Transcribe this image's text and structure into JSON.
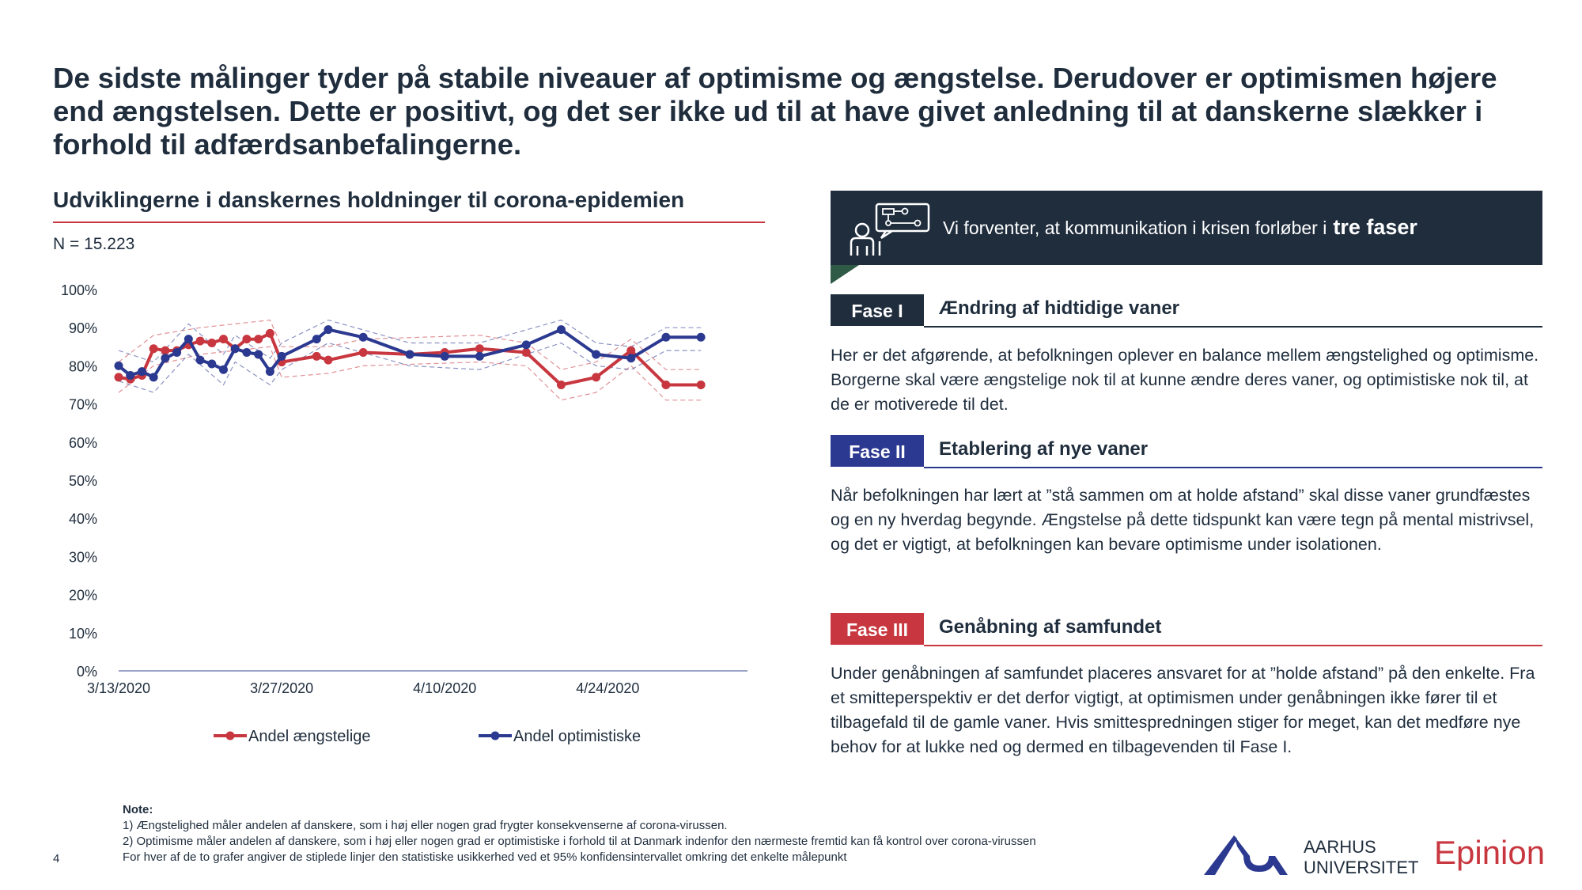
{
  "headline": "De sidste målinger tyder på stabile niveauer af optimisme og ængstelse. Derudover er optimismen højere end ængstelsen. Dette er positivt, og det ser ikke ud til at have givet anledning til at danskerne slækker i forhold til adfærdsanbefalingerne.",
  "chart_title": "Udviklingerne i danskernes holdninger til corona-epidemien",
  "n_label": "N = 15.223",
  "chart_data": {
    "type": "line",
    "ylim": [
      0,
      100
    ],
    "y_ticks": [
      "0%",
      "10%",
      "20%",
      "30%",
      "40%",
      "50%",
      "60%",
      "70%",
      "80%",
      "90%",
      "100%"
    ],
    "x_range": [
      "2020-03-13",
      "2020-05-06"
    ],
    "x_ticks": [
      {
        "date": "2020-03-13",
        "label": "3/13/2020"
      },
      {
        "date": "2020-03-27",
        "label": "3/27/2020"
      },
      {
        "date": "2020-04-10",
        "label": "4/10/2020"
      },
      {
        "date": "2020-04-24",
        "label": "4/24/2020"
      }
    ],
    "legend_position": "bottom",
    "series": [
      {
        "name": "Andel ængstelige",
        "color": "#c8373f",
        "points": [
          [
            "2020-03-13",
            77
          ],
          [
            "2020-03-14",
            76.5
          ],
          [
            "2020-03-15",
            77.5
          ],
          [
            "2020-03-16",
            84.5
          ],
          [
            "2020-03-17",
            84
          ],
          [
            "2020-03-18",
            84
          ],
          [
            "2020-03-19",
            85.5
          ],
          [
            "2020-03-20",
            86.5
          ],
          [
            "2020-03-21",
            86
          ],
          [
            "2020-03-22",
            87
          ],
          [
            "2020-03-23",
            84.5
          ],
          [
            "2020-03-24",
            87
          ],
          [
            "2020-03-25",
            87
          ],
          [
            "2020-03-26",
            88.5
          ],
          [
            "2020-03-27",
            81
          ],
          [
            "2020-03-30",
            82.5
          ],
          [
            "2020-03-31",
            81.5
          ],
          [
            "2020-04-03",
            83.5
          ],
          [
            "2020-04-07",
            83
          ],
          [
            "2020-04-10",
            83.5
          ],
          [
            "2020-04-13",
            84.5
          ],
          [
            "2020-04-17",
            83.5
          ],
          [
            "2020-04-20",
            75
          ],
          [
            "2020-04-23",
            77
          ],
          [
            "2020-04-26",
            84
          ],
          [
            "2020-04-29",
            75
          ],
          [
            "2020-05-02",
            75
          ]
        ],
        "upper": [
          [
            "2020-03-13",
            81
          ],
          [
            "2020-03-16",
            88
          ],
          [
            "2020-03-20",
            90
          ],
          [
            "2020-03-26",
            92
          ],
          [
            "2020-03-27",
            85
          ],
          [
            "2020-03-31",
            85
          ],
          [
            "2020-04-03",
            87
          ],
          [
            "2020-04-13",
            88
          ],
          [
            "2020-04-17",
            86
          ],
          [
            "2020-04-20",
            79
          ],
          [
            "2020-04-23",
            81
          ],
          [
            "2020-04-26",
            87
          ],
          [
            "2020-04-29",
            79
          ],
          [
            "2020-05-02",
            79
          ]
        ],
        "lower": [
          [
            "2020-03-13",
            73
          ],
          [
            "2020-03-16",
            80
          ],
          [
            "2020-03-20",
            83
          ],
          [
            "2020-03-26",
            85
          ],
          [
            "2020-03-27",
            77
          ],
          [
            "2020-03-31",
            78
          ],
          [
            "2020-04-03",
            80
          ],
          [
            "2020-04-13",
            81
          ],
          [
            "2020-04-17",
            80
          ],
          [
            "2020-04-20",
            71
          ],
          [
            "2020-04-23",
            73
          ],
          [
            "2020-04-26",
            80
          ],
          [
            "2020-04-29",
            71
          ],
          [
            "2020-05-02",
            71
          ]
        ]
      },
      {
        "name": "Andel optimistiske",
        "color": "#2b3990",
        "points": [
          [
            "2020-03-13",
            80
          ],
          [
            "2020-03-14",
            77.5
          ],
          [
            "2020-03-15",
            78.5
          ],
          [
            "2020-03-16",
            77
          ],
          [
            "2020-03-17",
            82
          ],
          [
            "2020-03-18",
            83.5
          ],
          [
            "2020-03-19",
            87
          ],
          [
            "2020-03-20",
            81.5
          ],
          [
            "2020-03-21",
            80.5
          ],
          [
            "2020-03-22",
            79
          ],
          [
            "2020-03-23",
            84.5
          ],
          [
            "2020-03-24",
            83.5
          ],
          [
            "2020-03-25",
            83
          ],
          [
            "2020-03-26",
            78.5
          ],
          [
            "2020-03-27",
            82.5
          ],
          [
            "2020-03-30",
            87
          ],
          [
            "2020-03-31",
            89.5
          ],
          [
            "2020-04-03",
            87.5
          ],
          [
            "2020-04-07",
            83
          ],
          [
            "2020-04-10",
            82.5
          ],
          [
            "2020-04-13",
            82.5
          ],
          [
            "2020-04-17",
            85.5
          ],
          [
            "2020-04-20",
            89.5
          ],
          [
            "2020-04-23",
            83
          ],
          [
            "2020-04-26",
            82
          ],
          [
            "2020-04-29",
            87.5
          ],
          [
            "2020-05-02",
            87.5
          ]
        ],
        "upper": [
          [
            "2020-03-13",
            84
          ],
          [
            "2020-03-16",
            81
          ],
          [
            "2020-03-19",
            91
          ],
          [
            "2020-03-22",
            83
          ],
          [
            "2020-03-23",
            88
          ],
          [
            "2020-03-26",
            82
          ],
          [
            "2020-03-27",
            86
          ],
          [
            "2020-03-31",
            92
          ],
          [
            "2020-04-07",
            86
          ],
          [
            "2020-04-13",
            86
          ],
          [
            "2020-04-20",
            92
          ],
          [
            "2020-04-23",
            86
          ],
          [
            "2020-04-26",
            85
          ],
          [
            "2020-04-29",
            90
          ],
          [
            "2020-05-02",
            90
          ]
        ],
        "lower": [
          [
            "2020-03-13",
            76
          ],
          [
            "2020-03-16",
            73
          ],
          [
            "2020-03-19",
            83
          ],
          [
            "2020-03-22",
            75
          ],
          [
            "2020-03-23",
            81
          ],
          [
            "2020-03-26",
            75
          ],
          [
            "2020-03-27",
            79
          ],
          [
            "2020-03-31",
            86
          ],
          [
            "2020-04-07",
            80
          ],
          [
            "2020-04-13",
            79
          ],
          [
            "2020-04-20",
            86
          ],
          [
            "2020-04-23",
            80
          ],
          [
            "2020-04-26",
            79
          ],
          [
            "2020-04-29",
            84
          ],
          [
            "2020-05-02",
            84
          ]
        ]
      }
    ]
  },
  "banner": {
    "text": "Vi forventer, at kommunikation i krisen forløber i",
    "bold": "tre faser",
    "color": "#1f2d3d",
    "icon": "presentation-icon"
  },
  "phases": [
    {
      "badge": "Fase I",
      "title": "Ændring af hidtidige vaner",
      "color": "#1f2d3d",
      "body": "Her er det afgørende, at befolkningen oplever en balance mellem ængstelighed og optimisme. Borgerne skal være ængstelige nok til at kunne ændre deres vaner, og optimistiske nok til, at de er motiverede til det."
    },
    {
      "badge": "Fase II",
      "title": "Etablering af nye vaner",
      "color": "#2b3990",
      "body": "Når befolkningen har lært at ”stå sammen om at holde afstand” skal disse vaner grundfæstes og en ny hverdag begynde. Ængstelse på dette tidspunkt kan være tegn på mental mistrivsel, og det er vigtigt, at befolkningen kan bevare optimisme under isolationen."
    },
    {
      "badge": "Fase III",
      "title": "Genåbning af samfundet",
      "color": "#c8373f",
      "body": "Under genåbningen af samfundet placeres ansvaret for at ”holde afstand” på den enkelte. Fra et smitteperspektiv er det derfor vigtigt, at optimismen under genåbningen ikke fører til et tilbagefald til de gamle vaner. Hvis smittespredningen stiger for meget, kan det medføre nye behov for at lukke ned og dermed en tilbagevenden til Fase I."
    }
  ],
  "note": {
    "title": "Note:",
    "lines": [
      "1) Ængstelighed måler andelen af danskere, som i høj eller nogen grad frygter konsekvenserne af corona-virussen.",
      "2) Optimisme måler andelen af danskere, som i høj eller nogen grad er optimistiske i forhold til at Danmark indenfor den nærmeste fremtid kan få kontrol over corona-virussen",
      "For hver af de to grafer angiver de stiplede linjer den statistiske usikkerhed ved et 95% konfidensintervallet omkring det enkelte målepunkt"
    ]
  },
  "page_number": "4",
  "logos": {
    "au_line1": "AARHUS",
    "au_line2": "UNIVERSITET",
    "epinion": "Epinion"
  }
}
